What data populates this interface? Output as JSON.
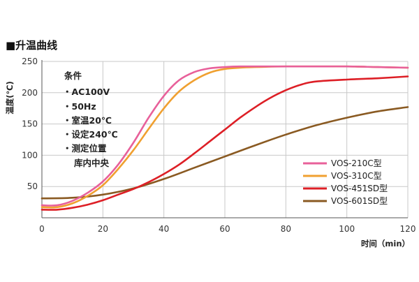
{
  "chart_data": {
    "type": "line",
    "title": "■升温曲线",
    "ylabel": "温度(℃)",
    "xlabel": "时间（min）",
    "xlim": [
      0,
      120
    ],
    "ylim": [
      0,
      250
    ],
    "x_ticks": [
      0,
      20,
      40,
      60,
      80,
      100,
      120
    ],
    "y_ticks": [
      50,
      100,
      150,
      200,
      250
    ],
    "grid": true,
    "legend_position": "bottom-right",
    "annotation": {
      "title": "条件",
      "lines": [
        "・AC100V",
        "・50Hz",
        "・室温20℃",
        "・设定240℃",
        "・测定位置",
        "库内中央"
      ]
    },
    "series": [
      {
        "name": "VOS-210C型",
        "color": "#e8609a",
        "x": [
          0,
          5,
          10,
          15,
          20,
          25,
          30,
          35,
          40,
          45,
          50,
          55,
          60,
          65,
          70,
          80,
          90,
          100,
          110,
          120
        ],
        "values": [
          20,
          20,
          27,
          40,
          58,
          85,
          120,
          160,
          195,
          220,
          233,
          239,
          241,
          242,
          242,
          242,
          242,
          242,
          241,
          240
        ]
      },
      {
        "name": "VOS-310C型",
        "color": "#f0a030",
        "x": [
          0,
          5,
          10,
          15,
          20,
          25,
          30,
          35,
          40,
          45,
          50,
          55,
          60,
          65,
          70,
          80,
          90,
          100,
          110,
          120
        ],
        "values": [
          17,
          17,
          23,
          35,
          52,
          78,
          108,
          142,
          175,
          202,
          220,
          232,
          238,
          240,
          241,
          242,
          242,
          242,
          241,
          240
        ]
      },
      {
        "name": "VOS-451SD型",
        "color": "#dd1f26",
        "x": [
          0,
          5,
          10,
          15,
          20,
          25,
          30,
          35,
          40,
          45,
          50,
          55,
          60,
          65,
          70,
          75,
          80,
          85,
          90,
          100,
          110,
          120
        ],
        "values": [
          13,
          13,
          16,
          21,
          28,
          37,
          46,
          57,
          70,
          85,
          103,
          122,
          141,
          160,
          177,
          192,
          204,
          213,
          218,
          221,
          223,
          226
        ]
      },
      {
        "name": "VOS-601SD型",
        "color": "#8a5a22",
        "x": [
          0,
          10,
          20,
          30,
          40,
          50,
          60,
          70,
          80,
          90,
          100,
          110,
          120
        ],
        "values": [
          31,
          32,
          37,
          47,
          62,
          80,
          98,
          116,
          133,
          148,
          160,
          170,
          177
        ]
      }
    ]
  }
}
